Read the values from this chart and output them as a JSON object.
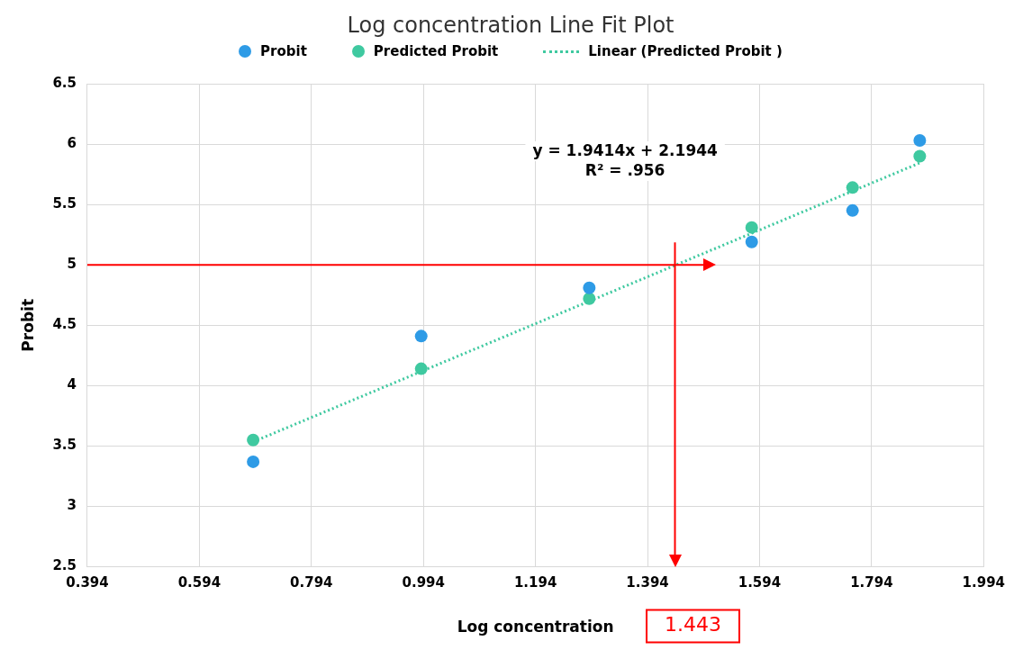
{
  "chart_data": {
    "type": "scatter",
    "title": "Log concentration Line Fit  Plot",
    "xlabel": "Log concentration",
    "ylabel": "Probit",
    "series": [
      {
        "name": "Probit",
        "color": "#2e9be6",
        "x": [
          0.69,
          0.99,
          1.29,
          1.58,
          1.76,
          1.88
        ],
        "values": [
          3.37,
          4.41,
          4.81,
          5.19,
          5.45,
          6.03
        ]
      },
      {
        "name": "Predicted Probit",
        "color": "#3fc9a0",
        "x": [
          0.69,
          0.99,
          1.29,
          1.58,
          1.76,
          1.88
        ],
        "values": [
          3.55,
          4.14,
          4.72,
          5.31,
          5.64,
          5.9
        ]
      },
      {
        "name": "Linear (Predicted Probit )",
        "type": "line",
        "line_style": "dotted",
        "marker": "none",
        "color": "#3fc9a0",
        "x": [
          0.69,
          1.88
        ],
        "values": [
          3.535,
          5.844
        ]
      }
    ],
    "xlim": [
      0.394,
      1.994
    ],
    "xticks": [
      0.394,
      0.594,
      0.794,
      0.994,
      1.194,
      1.394,
      1.594,
      1.794,
      1.994
    ],
    "ylim": [
      2.5,
      6.5
    ],
    "yticks": [
      2.5,
      3,
      3.5,
      4,
      4.5,
      5,
      5.5,
      6,
      6.5
    ],
    "ref_lines": [
      {
        "axis": "y",
        "value": 5,
        "color": "#ff0000"
      },
      {
        "axis": "x",
        "value": 1.443,
        "label": "1.443",
        "color": "#ff0000"
      }
    ],
    "annotations": [
      "y = 1.9414x + 2.1944",
      "R² = .956"
    ],
    "grid": true,
    "legend": "top",
    "marker": "circle"
  }
}
